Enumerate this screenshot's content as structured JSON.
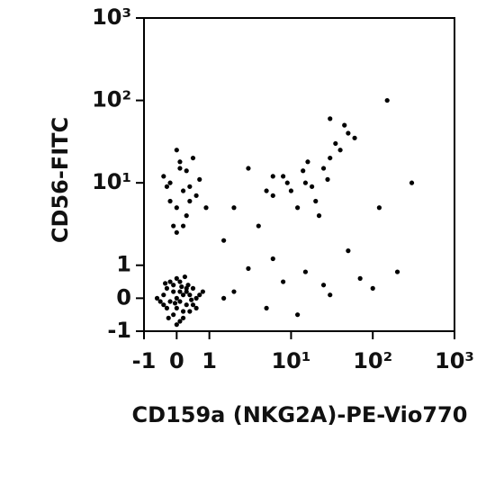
{
  "chart_data": {
    "type": "scatter",
    "xlabel": "CD159a (NKG2A)-PE-Vio770",
    "ylabel": "CD56-FITC",
    "xscale": "symlog",
    "yscale": "symlog",
    "color": "#000000",
    "xlim": [
      -1,
      1000
    ],
    "ylim": [
      -1,
      1000
    ],
    "xticks": [
      -1,
      0,
      1,
      {
        "value": 10,
        "label": "10¹"
      },
      {
        "value": 100,
        "label": "10²"
      },
      {
        "value": 1000,
        "label": "10³"
      }
    ],
    "yticks": [
      -1,
      0,
      1,
      {
        "value": 10,
        "label": "10¹"
      },
      {
        "value": 100,
        "label": "10²"
      },
      {
        "value": 1000,
        "label": "10³"
      }
    ],
    "x": [
      0,
      0.1,
      -0.2,
      0.3,
      -0.4,
      0.5,
      0.2,
      -0.1,
      0.4,
      -0.3,
      0.6,
      0.1,
      -0.5,
      0.2,
      0,
      0.3,
      -0.2,
      0.7,
      -0.1,
      0.4,
      0.1,
      -0.3,
      0.5,
      0,
      0.2,
      -0.4,
      0.3,
      -0.1,
      0.6,
      0.1,
      0.8,
      -0.6,
      0,
      0.35,
      -0.25,
      0.15,
      0.45,
      -0.05,
      0.25,
      -0.35,
      0,
      0.2,
      -0.2,
      0.4,
      -0.4,
      0.1,
      0.3,
      -0.1,
      0.5,
      0.6,
      0,
      -0.3,
      0.2,
      0.1,
      0.7,
      -0.2,
      0.3,
      0.9,
      0,
      0.4,
      10,
      15,
      20,
      8,
      25,
      30,
      12,
      18,
      40,
      50,
      6,
      22,
      35,
      14,
      28,
      45,
      9,
      16,
      60,
      30,
      2,
      5,
      8,
      15,
      30,
      50,
      3,
      12,
      25,
      70,
      100,
      200,
      1.5,
      6,
      2,
      3,
      5,
      4,
      6,
      1.5,
      150,
      300,
      120
    ],
    "values": [
      0,
      0.2,
      -0.1,
      0.3,
      0.1,
      -0.2,
      -0.4,
      0.4,
      0.1,
      -0.3,
      0,
      0.5,
      -0.1,
      -0.6,
      -0.3,
      0.2,
      0.5,
      0.1,
      -0.5,
      -0.4,
      -0.1,
      0.3,
      0.3,
      0.6,
      0.1,
      -0.2,
      -0.2,
      0.2,
      -0.3,
      -0.7,
      0.2,
      0,
      -0.8,
      0.4,
      -0.6,
      0.35,
      -0.05,
      -0.15,
      0.65,
      0.45,
      5,
      8,
      10,
      6,
      12,
      15,
      4,
      3,
      20,
      7,
      25,
      9,
      3,
      18,
      11,
      6,
      14,
      5,
      2.5,
      9,
      8,
      10,
      6,
      12,
      15,
      20,
      5,
      9,
      25,
      40,
      7,
      4,
      30,
      14,
      11,
      50,
      10,
      18,
      35,
      60,
      0.2,
      -0.3,
      0.5,
      0.8,
      0.1,
      1.5,
      0.9,
      -0.5,
      0.4,
      0.6,
      0.3,
      0.8,
      0,
      1.2,
      5,
      15,
      8,
      3,
      12,
      2,
      100,
      10,
      5
    ]
  }
}
